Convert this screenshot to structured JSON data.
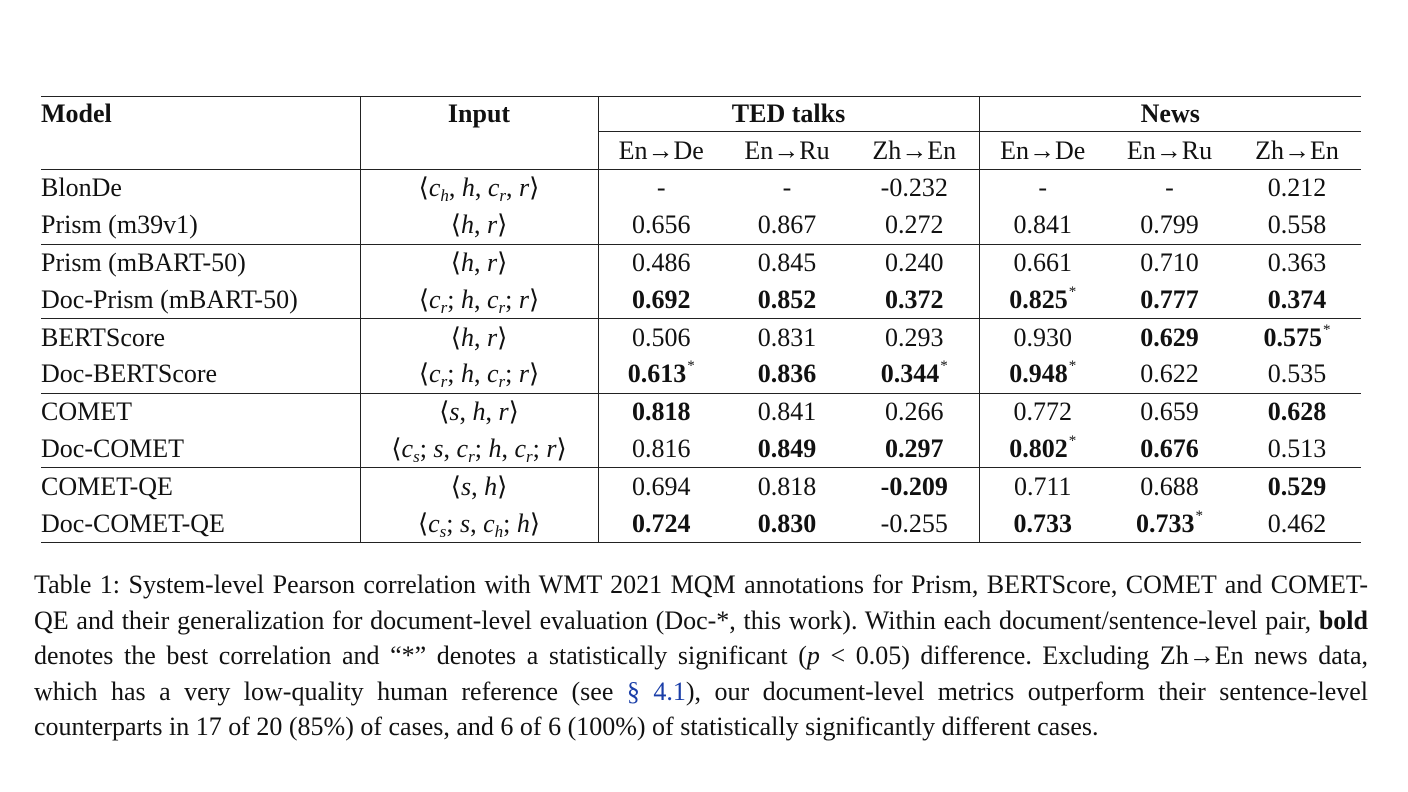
{
  "table": {
    "headers": {
      "model": "Model",
      "input": "Input",
      "group_ted": "TED talks",
      "group_news": "News",
      "pairs": [
        "En→De",
        "En→Ru",
        "Zh→En",
        "En→De",
        "En→Ru",
        "Zh→En"
      ]
    },
    "rows": [
      {
        "model": "BlonDe",
        "input": "⟨c_h, h, c_r, r⟩",
        "cells": [
          {
            "v": "-"
          },
          {
            "v": "-"
          },
          {
            "v": "-0.232"
          },
          {
            "v": "-"
          },
          {
            "v": "-"
          },
          {
            "v": "0.212"
          }
        ]
      },
      {
        "model": "Prism (m39v1)",
        "input": "⟨h, r⟩",
        "cells": [
          {
            "v": "0.656"
          },
          {
            "v": "0.867"
          },
          {
            "v": "0.272"
          },
          {
            "v": "0.841"
          },
          {
            "v": "0.799"
          },
          {
            "v": "0.558"
          }
        ]
      },
      {
        "model": "Prism (mBART-50)",
        "input": "⟨h, r⟩",
        "cells": [
          {
            "v": "0.486"
          },
          {
            "v": "0.845"
          },
          {
            "v": "0.240"
          },
          {
            "v": "0.661"
          },
          {
            "v": "0.710"
          },
          {
            "v": "0.363"
          }
        ]
      },
      {
        "model": "Doc-Prism (mBART-50)",
        "input": "⟨c_r; h, c_r; r⟩",
        "cells": [
          {
            "v": "0.692",
            "b": true
          },
          {
            "v": "0.852",
            "b": true
          },
          {
            "v": "0.372",
            "b": true
          },
          {
            "v": "0.825",
            "b": true,
            "s": true
          },
          {
            "v": "0.777",
            "b": true
          },
          {
            "v": "0.374",
            "b": true
          }
        ]
      },
      {
        "model": "BERTScore",
        "input": "⟨h, r⟩",
        "cells": [
          {
            "v": "0.506"
          },
          {
            "v": "0.831"
          },
          {
            "v": "0.293"
          },
          {
            "v": "0.930"
          },
          {
            "v": "0.629",
            "b": true
          },
          {
            "v": "0.575",
            "b": true,
            "s": true
          }
        ]
      },
      {
        "model": "Doc-BERTScore",
        "input": "⟨c_r; h, c_r; r⟩",
        "cells": [
          {
            "v": "0.613",
            "b": true,
            "s": true
          },
          {
            "v": "0.836",
            "b": true
          },
          {
            "v": "0.344",
            "b": true,
            "s": true
          },
          {
            "v": "0.948",
            "b": true,
            "s": true
          },
          {
            "v": "0.622"
          },
          {
            "v": "0.535"
          }
        ]
      },
      {
        "model": "COMET",
        "input": "⟨s, h, r⟩",
        "cells": [
          {
            "v": "0.818",
            "b": true
          },
          {
            "v": "0.841"
          },
          {
            "v": "0.266"
          },
          {
            "v": "0.772"
          },
          {
            "v": "0.659"
          },
          {
            "v": "0.628",
            "b": true
          }
        ]
      },
      {
        "model": "Doc-COMET",
        "input": "⟨c_s; s, c_r; h, c_r; r⟩",
        "cells": [
          {
            "v": "0.816"
          },
          {
            "v": "0.849",
            "b": true
          },
          {
            "v": "0.297",
            "b": true
          },
          {
            "v": "0.802",
            "b": true,
            "s": true
          },
          {
            "v": "0.676",
            "b": true
          },
          {
            "v": "0.513"
          }
        ]
      },
      {
        "model": "COMET-QE",
        "input": "⟨s, h⟩",
        "cells": [
          {
            "v": "0.694"
          },
          {
            "v": "0.818"
          },
          {
            "v": "-0.209",
            "b": true
          },
          {
            "v": "0.711"
          },
          {
            "v": "0.688"
          },
          {
            "v": "0.529",
            "b": true
          }
        ]
      },
      {
        "model": "Doc-COMET-QE",
        "input": "⟨c_s; s, c_h; h⟩",
        "cells": [
          {
            "v": "0.724",
            "b": true
          },
          {
            "v": "0.830",
            "b": true
          },
          {
            "v": "-0.255"
          },
          {
            "v": "0.733",
            "b": true
          },
          {
            "v": "0.733",
            "b": true,
            "s": true
          },
          {
            "v": "0.462"
          }
        ]
      }
    ],
    "star_symbol": "*"
  },
  "caption": {
    "label": "Table 1:",
    "part1": " System-level Pearson correlation with WMT 2021 MQM annotations for Prism, BERTScore, COMET and COMET-QE and their generalization for document-level evaluation (Doc-*, this work).  Within each document/sentence-level pair, ",
    "bold_word": "bold",
    "part2": " denotes the best correlation and “*” denotes a statistically significant  (",
    "p_symbol": "p",
    "part3": " < 0.05) difference.  Excluding Zh→En news data, which has a very low-quality human reference (see ",
    "link_text": "§ 4.1",
    "part4": "), our document-level metrics outperform their sentence-level counterparts in 17 of 20 (85%) of cases, and 6 of 6 (100%) of statistically significantly different cases."
  }
}
